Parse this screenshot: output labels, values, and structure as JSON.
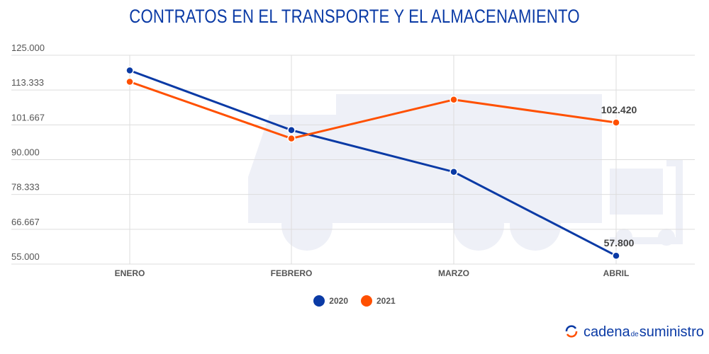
{
  "chart_data": {
    "type": "line",
    "title": "CONTRATOS EN EL TRANSPORTE Y EL ALMACENAMIENTO",
    "categories": [
      "ENERO",
      "FEBRERO",
      "MARZO",
      "ABRIL"
    ],
    "series": [
      {
        "name": "2020",
        "color": "#0a3aa5",
        "values": [
          119900,
          99900,
          85900,
          57800
        ]
      },
      {
        "name": "2021",
        "color": "#ff5000",
        "values": [
          116100,
          97100,
          110100,
          102420
        ]
      }
    ],
    "data_labels": [
      {
        "series": "2020",
        "category": "ABRIL",
        "text": "57.800"
      },
      {
        "series": "2021",
        "category": "ABRIL",
        "text": "102.420"
      }
    ],
    "yticks": [
      "125.000",
      "113.333",
      "101.667",
      "90.000",
      "78.333",
      "66.667",
      "55.000"
    ],
    "ylim": [
      55000,
      125000
    ],
    "grid": true,
    "legend_position": "bottom"
  },
  "brand": {
    "logo_text_1": "cadena",
    "logo_text_de": "de",
    "logo_text_2": "suministro"
  }
}
